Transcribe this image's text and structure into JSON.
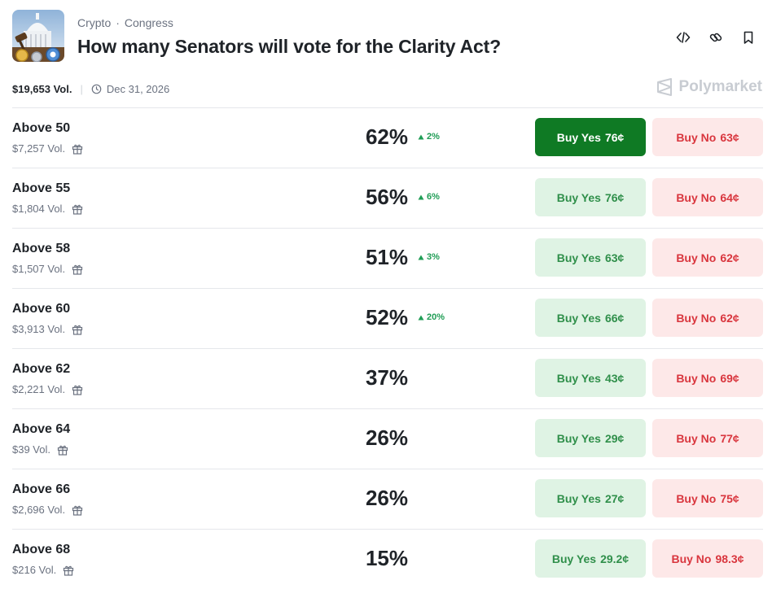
{
  "header": {
    "category": "Crypto",
    "separator": "·",
    "subcategory": "Congress",
    "title": "How many Senators will vote for the Clarity Act?"
  },
  "meta": {
    "volume": "$19,653 Vol.",
    "end_date": "Dec 31, 2026"
  },
  "brand": "Polymarket",
  "colors": {
    "yes_active_bg": "#0f7a24",
    "yes_bg": "#dff3e4",
    "yes_text": "#2f8f4a",
    "no_bg": "#fde8e8",
    "no_text": "#d9363e",
    "change_up": "#1f9d55"
  },
  "icons": {
    "embed": "code-icon",
    "link": "link-icon",
    "bookmark": "bookmark-icon",
    "clock": "clock-icon",
    "gift": "gift-icon",
    "brand": "polymarket-logo-icon"
  },
  "markets": [
    {
      "label": "Above 50",
      "volume": "$7,257 Vol.",
      "percent": "62%",
      "change": "2%",
      "yes_label": "Buy Yes",
      "yes_price": "76¢",
      "no_label": "Buy No",
      "no_price": "63¢",
      "yes_active": true
    },
    {
      "label": "Above 55",
      "volume": "$1,804 Vol.",
      "percent": "56%",
      "change": "6%",
      "yes_label": "Buy Yes",
      "yes_price": "76¢",
      "no_label": "Buy No",
      "no_price": "64¢",
      "yes_active": false
    },
    {
      "label": "Above 58",
      "volume": "$1,507 Vol.",
      "percent": "51%",
      "change": "3%",
      "yes_label": "Buy Yes",
      "yes_price": "63¢",
      "no_label": "Buy No",
      "no_price": "62¢",
      "yes_active": false
    },
    {
      "label": "Above 60",
      "volume": "$3,913 Vol.",
      "percent": "52%",
      "change": "20%",
      "yes_label": "Buy Yes",
      "yes_price": "66¢",
      "no_label": "Buy No",
      "no_price": "62¢",
      "yes_active": false
    },
    {
      "label": "Above 62",
      "volume": "$2,221 Vol.",
      "percent": "37%",
      "change": "",
      "yes_label": "Buy Yes",
      "yes_price": "43¢",
      "no_label": "Buy No",
      "no_price": "69¢",
      "yes_active": false
    },
    {
      "label": "Above 64",
      "volume": "$39 Vol.",
      "percent": "26%",
      "change": "",
      "yes_label": "Buy Yes",
      "yes_price": "29¢",
      "no_label": "Buy No",
      "no_price": "77¢",
      "yes_active": false
    },
    {
      "label": "Above 66",
      "volume": "$2,696 Vol.",
      "percent": "26%",
      "change": "",
      "yes_label": "Buy Yes",
      "yes_price": "27¢",
      "no_label": "Buy No",
      "no_price": "75¢",
      "yes_active": false
    },
    {
      "label": "Above 68",
      "volume": "$216 Vol.",
      "percent": "15%",
      "change": "",
      "yes_label": "Buy Yes",
      "yes_price": "29.2¢",
      "no_label": "Buy No",
      "no_price": "98.3¢",
      "yes_active": false
    }
  ]
}
